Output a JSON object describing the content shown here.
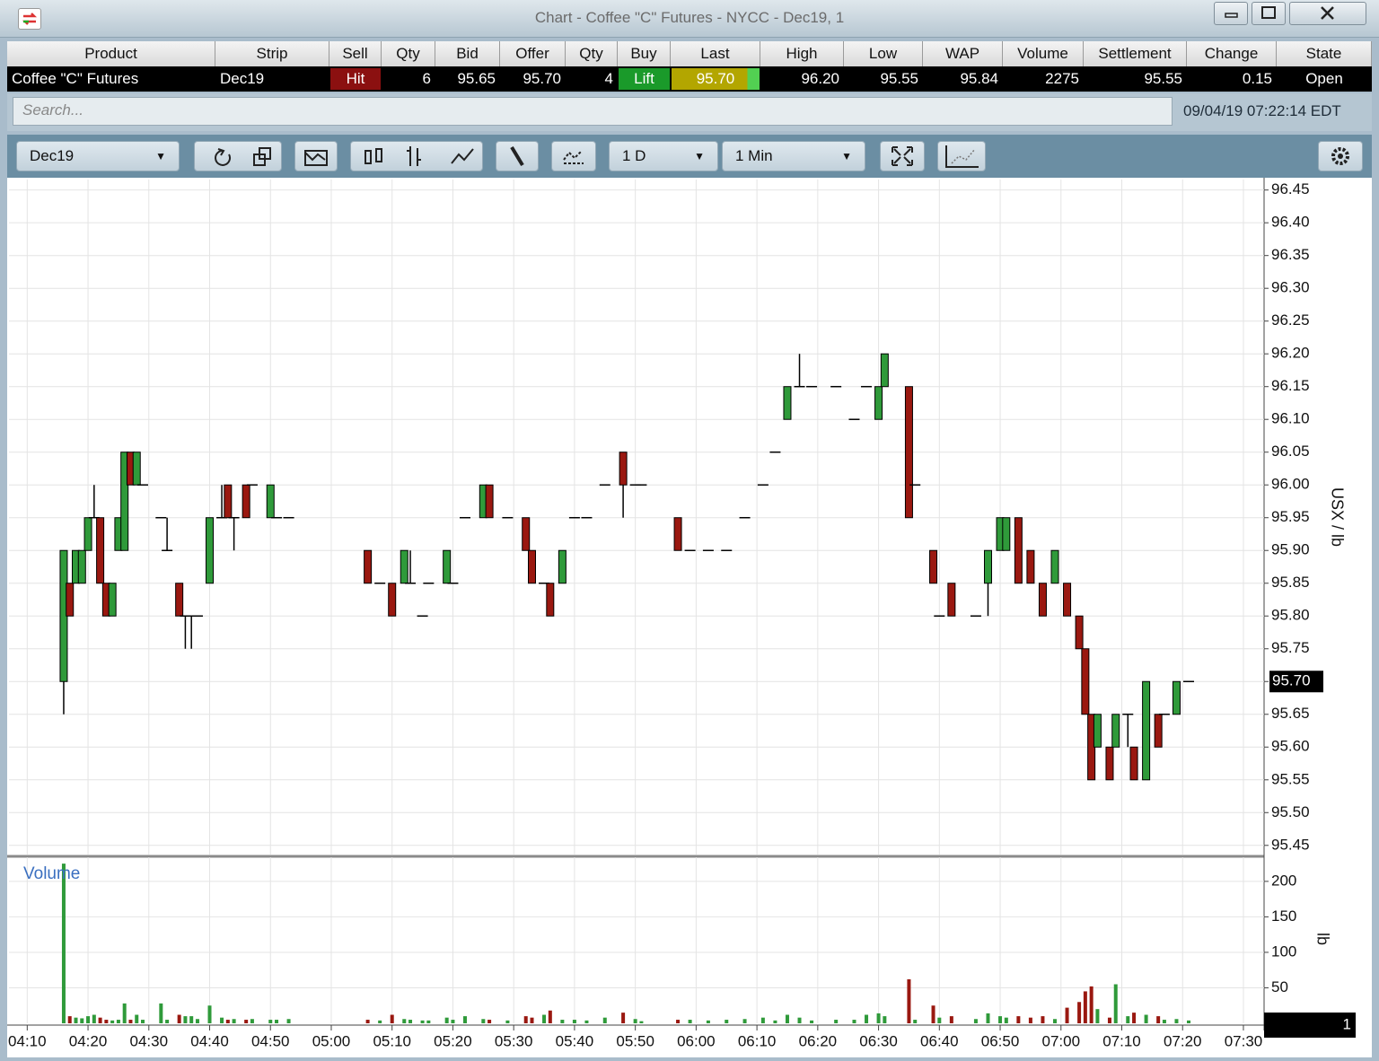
{
  "window": {
    "title": "Chart - Coffee \"C\" Futures - NYCC - Dec19, 1"
  },
  "quote_table": {
    "headers": [
      "Product",
      "Strip",
      "Sell",
      "Qty",
      "Bid",
      "Offer",
      "Qty",
      "Buy",
      "Last",
      "High",
      "Low",
      "WAP",
      "Volume",
      "Settlement",
      "Change",
      "State"
    ],
    "rows": [
      [
        "Coffee \"C\" Futures",
        "Dec19",
        "Hit",
        "6",
        "95.65",
        "95.70",
        "4",
        "Lift",
        "95.70",
        "96.20",
        "95.55",
        "95.84",
        "2275",
        "95.55",
        "0.15",
        "Open"
      ]
    ]
  },
  "search": {
    "placeholder": "Search..."
  },
  "clock": "09/04/19 07:22:14 EDT",
  "toolbar": {
    "contract": "Dec19",
    "range": "1 D",
    "interval": "1 Min"
  },
  "pane_id": "1",
  "chart_data": [
    {
      "type": "candlestick",
      "y_label": "USX / lb",
      "grid": true,
      "up_color": "#2f9a3a",
      "down_color": "#9a1810",
      "flat_color": "#000000",
      "last_price": {
        "value": 95.7,
        "label": "95.70"
      },
      "xlim": [
        247,
        453.4
      ],
      "ylim": [
        95.436,
        96.466
      ],
      "yticks": [
        95.45,
        {
          "value": 95.5,
          "label": "95.50"
        },
        95.55,
        {
          "value": 95.6,
          "label": "95.60"
        },
        95.65,
        {
          "value": 95.7,
          "label": "95.70"
        },
        95.75,
        {
          "value": 95.8,
          "label": "95.80"
        },
        95.85,
        {
          "value": 95.9,
          "label": "95.90"
        },
        95.95,
        {
          "value": 96,
          "label": "96.00"
        },
        96.05,
        {
          "value": 96.1,
          "label": "96.10"
        },
        96.15,
        {
          "value": 96.2,
          "label": "96.20"
        },
        96.25,
        {
          "value": 96.3,
          "label": "96.30"
        },
        96.35,
        {
          "value": 96.4,
          "label": "96.40"
        },
        96.45
      ],
      "x": [
        256,
        257,
        258,
        259,
        260,
        261,
        262,
        263,
        264,
        265,
        266,
        267,
        268,
        269,
        272,
        273,
        275,
        276,
        277,
        278,
        280,
        282,
        283,
        284,
        286,
        287,
        290,
        291,
        293,
        306,
        308,
        310,
        312,
        313,
        315,
        316,
        319,
        320,
        322,
        325,
        326,
        329,
        332,
        333,
        335,
        336,
        338,
        340,
        342,
        345,
        348,
        350,
        351,
        357,
        359,
        362,
        365,
        368,
        371,
        373,
        375,
        377,
        379,
        383,
        386,
        388,
        390,
        391,
        395,
        396,
        399,
        400,
        402,
        406,
        408,
        410,
        411,
        413,
        415,
        417,
        419,
        421,
        423,
        424,
        425,
        426,
        428,
        429,
        431,
        432,
        434,
        436,
        437,
        439,
        441
      ],
      "open": [
        95.7,
        95.85,
        95.85,
        95.85,
        95.9,
        95.95,
        95.95,
        95.85,
        95.8,
        95.9,
        95.9,
        96.05,
        96,
        96,
        95.95,
        95.9,
        95.85,
        95.8,
        95.8,
        95.8,
        95.85,
        95.95,
        96,
        95.95,
        96,
        96,
        95.95,
        95.95,
        95.95,
        95.9,
        95.85,
        95.85,
        95.85,
        95.85,
        95.8,
        95.85,
        95.85,
        95.85,
        95.95,
        95.95,
        96,
        95.95,
        95.95,
        95.9,
        95.85,
        95.85,
        95.85,
        95.95,
        95.95,
        96,
        96.05,
        96,
        96,
        95.95,
        95.9,
        95.9,
        95.9,
        95.95,
        96,
        96.05,
        96.1,
        96.15,
        96.15,
        96.15,
        96.1,
        96.15,
        96.1,
        96.15,
        96.15,
        96,
        95.9,
        95.8,
        95.85,
        95.8,
        95.85,
        95.9,
        95.9,
        95.95,
        95.9,
        95.85,
        95.85,
        95.85,
        95.8,
        95.75,
        95.65,
        95.6,
        95.6,
        95.6,
        95.65,
        95.6,
        95.55,
        95.65,
        95.65,
        95.65,
        95.7
      ],
      "high": [
        95.9,
        95.85,
        95.9,
        95.9,
        95.95,
        96,
        95.95,
        95.85,
        95.85,
        95.95,
        96.05,
        96.05,
        96.05,
        96,
        95.95,
        95.95,
        95.85,
        95.8,
        95.8,
        95.8,
        95.95,
        96,
        96,
        95.95,
        96,
        96,
        96,
        95.95,
        95.95,
        95.9,
        95.85,
        95.85,
        95.9,
        95.9,
        95.8,
        95.85,
        95.9,
        95.85,
        95.95,
        96,
        96,
        95.95,
        95.95,
        95.9,
        95.85,
        95.85,
        95.9,
        95.95,
        95.95,
        96,
        96.05,
        96,
        96,
        95.95,
        95.9,
        95.9,
        95.9,
        95.95,
        96,
        96.05,
        96.15,
        96.2,
        96.15,
        96.15,
        96.1,
        96.15,
        96.15,
        96.2,
        96.15,
        96,
        95.9,
        95.8,
        95.85,
        95.8,
        95.9,
        95.95,
        95.95,
        95.95,
        95.9,
        95.85,
        95.9,
        95.85,
        95.8,
        95.75,
        95.65,
        95.65,
        95.6,
        95.65,
        95.65,
        95.6,
        95.7,
        95.65,
        95.65,
        95.7,
        95.7
      ],
      "low": [
        95.65,
        95.8,
        95.85,
        95.85,
        95.9,
        95.95,
        95.85,
        95.8,
        95.8,
        95.9,
        95.9,
        96,
        96,
        96,
        95.95,
        95.9,
        95.8,
        95.75,
        95.75,
        95.8,
        95.85,
        95.95,
        95.95,
        95.9,
        95.95,
        96,
        95.95,
        95.95,
        95.95,
        95.85,
        95.85,
        95.8,
        95.85,
        95.85,
        95.8,
        95.85,
        95.85,
        95.85,
        95.95,
        95.95,
        95.95,
        95.95,
        95.9,
        95.85,
        95.85,
        95.8,
        95.85,
        95.95,
        95.95,
        96,
        95.95,
        96,
        96,
        95.9,
        95.9,
        95.9,
        95.9,
        95.95,
        96,
        96.05,
        96.1,
        96.15,
        96.15,
        96.15,
        96.1,
        96.15,
        96.1,
        96.15,
        95.95,
        96,
        95.85,
        95.8,
        95.8,
        95.8,
        95.8,
        95.9,
        95.9,
        95.85,
        95.85,
        95.8,
        95.85,
        95.8,
        95.75,
        95.65,
        95.55,
        95.6,
        95.55,
        95.6,
        95.6,
        95.55,
        95.55,
        95.6,
        95.65,
        95.65,
        95.7
      ],
      "close": [
        95.9,
        95.8,
        95.9,
        95.9,
        95.95,
        95.95,
        95.85,
        95.8,
        95.85,
        95.95,
        96.05,
        96,
        96.05,
        96,
        95.95,
        95.9,
        95.8,
        95.8,
        95.8,
        95.8,
        95.95,
        95.95,
        95.95,
        95.95,
        95.95,
        96,
        96,
        95.95,
        95.95,
        95.85,
        95.85,
        95.8,
        95.9,
        95.85,
        95.8,
        95.85,
        95.9,
        95.85,
        95.95,
        96,
        95.95,
        95.95,
        95.9,
        95.85,
        95.85,
        95.8,
        95.9,
        95.95,
        95.95,
        96,
        96,
        96,
        96,
        95.9,
        95.9,
        95.9,
        95.9,
        95.95,
        96,
        96.05,
        96.15,
        96.15,
        96.15,
        96.15,
        96.1,
        96.15,
        96.15,
        96.2,
        95.95,
        96,
        95.85,
        95.8,
        95.8,
        95.8,
        95.9,
        95.95,
        95.95,
        95.85,
        95.85,
        95.8,
        95.9,
        95.8,
        95.75,
        95.65,
        95.55,
        95.65,
        95.55,
        95.65,
        95.65,
        95.55,
        95.7,
        95.6,
        95.65,
        95.7,
        95.7
      ]
    },
    {
      "type": "bar",
      "title": "Volume",
      "y_label": "lb",
      "grid": true,
      "up_color": "#2f9a3a",
      "down_color": "#9a1810",
      "xlim": [
        247,
        453.4
      ],
      "ylim": [
        0,
        234
      ],
      "yticks": [
        50,
        100,
        150,
        200
      ],
      "xticks": [
        {
          "value": 250,
          "label": "04:10"
        },
        {
          "value": 260,
          "label": "04:20"
        },
        {
          "value": 270,
          "label": "04:30"
        },
        {
          "value": 280,
          "label": "04:40"
        },
        {
          "value": 290,
          "label": "04:50"
        },
        {
          "value": 300,
          "label": "05:00"
        },
        {
          "value": 310,
          "label": "05:10"
        },
        {
          "value": 320,
          "label": "05:20"
        },
        {
          "value": 330,
          "label": "05:30"
        },
        {
          "value": 340,
          "label": "05:40"
        },
        {
          "value": 350,
          "label": "05:50"
        },
        {
          "value": 360,
          "label": "06:00"
        },
        {
          "value": 370,
          "label": "06:10"
        },
        {
          "value": 380,
          "label": "06:20"
        },
        {
          "value": 390,
          "label": "06:30"
        },
        {
          "value": 400,
          "label": "06:40"
        },
        {
          "value": 410,
          "label": "06:50"
        },
        {
          "value": 420,
          "label": "07:00"
        },
        {
          "value": 430,
          "label": "07:10"
        },
        {
          "value": 440,
          "label": "07:20"
        },
        {
          "value": 450,
          "label": "07:30"
        }
      ],
      "x": [
        256,
        257,
        258,
        259,
        260,
        261,
        262,
        263,
        264,
        265,
        266,
        267,
        268,
        269,
        272,
        273,
        275,
        276,
        277,
        278,
        280,
        282,
        283,
        284,
        286,
        287,
        290,
        291,
        293,
        306,
        308,
        310,
        312,
        313,
        315,
        316,
        319,
        320,
        322,
        325,
        326,
        329,
        332,
        333,
        335,
        336,
        338,
        340,
        342,
        345,
        348,
        350,
        351,
        357,
        359,
        362,
        365,
        368,
        371,
        373,
        375,
        377,
        379,
        383,
        386,
        388,
        390,
        391,
        395,
        396,
        399,
        400,
        402,
        406,
        408,
        410,
        411,
        413,
        415,
        417,
        419,
        421,
        423,
        424,
        425,
        426,
        428,
        429,
        431,
        432,
        434,
        436,
        437,
        439,
        441
      ],
      "values": [
        225,
        10,
        8,
        7,
        10,
        12,
        8,
        5,
        4,
        5,
        28,
        5,
        12,
        5,
        28,
        5,
        12,
        10,
        10,
        6,
        25,
        8,
        5,
        6,
        5,
        6,
        5,
        5,
        6,
        5,
        4,
        12,
        6,
        5,
        4,
        4,
        8,
        5,
        10,
        6,
        5,
        4,
        10,
        8,
        12,
        18,
        5,
        5,
        4,
        8,
        15,
        6,
        3,
        5,
        5,
        4,
        5,
        6,
        8,
        4,
        12,
        8,
        4,
        5,
        5,
        12,
        14,
        10,
        62,
        5,
        25,
        8,
        10,
        6,
        14,
        10,
        8,
        10,
        8,
        10,
        6,
        22,
        30,
        45,
        52,
        20,
        8,
        55,
        10,
        15,
        12,
        10,
        5,
        6,
        4
      ]
    }
  ]
}
